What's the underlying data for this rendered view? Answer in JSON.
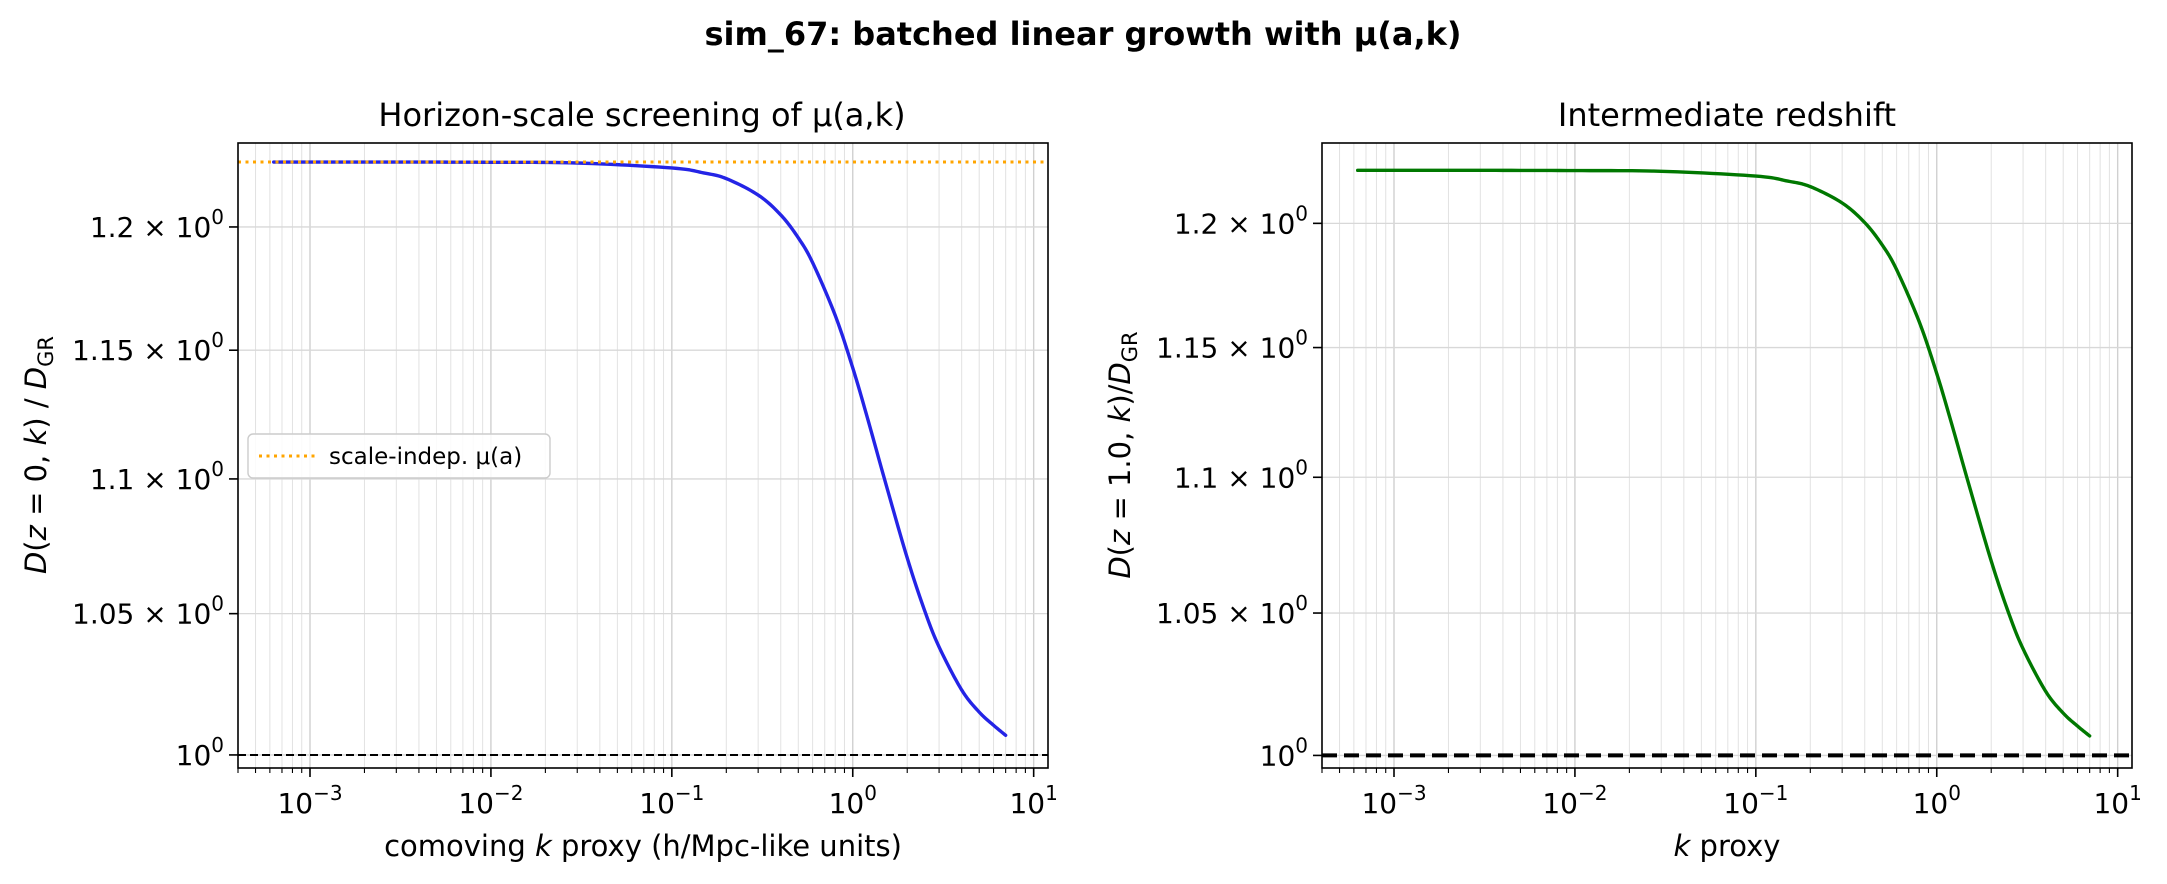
{
  "figure": {
    "suptitle": "sim_67: batched linear growth with μ(a,k)"
  },
  "chart_data": [
    {
      "type": "line",
      "title": "Horizon-scale screening of μ(a,k)",
      "xlabel_parts": [
        "comoving ",
        "k",
        " proxy (h/Mpc-like units)"
      ],
      "ylabel_parts": [
        "D",
        "(",
        "z",
        " = 0, ",
        "k",
        ") / ",
        "D",
        "GR"
      ],
      "xscale": "log",
      "yscale": "log",
      "xlim": [
        0.0004,
        12
      ],
      "ylim": [
        0.9955,
        1.2353
      ],
      "xticks": [
        0.001,
        0.01,
        0.1,
        1,
        10
      ],
      "xtick_labels": [
        {
          "base": "10",
          "exp": "−3"
        },
        {
          "base": "10",
          "exp": "−2"
        },
        {
          "base": "10",
          "exp": "−1"
        },
        {
          "base": "10",
          "exp": "0"
        },
        {
          "base": "10",
          "exp": "1"
        }
      ],
      "yticks": [
        1.0,
        1.05,
        1.1,
        1.15,
        1.2
      ],
      "ytick_labels": [
        {
          "mant": "",
          "base": "10",
          "exp": "0"
        },
        {
          "mant": "1.05 × ",
          "base": "10",
          "exp": "0"
        },
        {
          "mant": "1.1 × ",
          "base": "10",
          "exp": "0"
        },
        {
          "mant": "1.15 × ",
          "base": "10",
          "exp": "0"
        },
        {
          "mant": "1.2 × ",
          "base": "10",
          "exp": "0"
        }
      ],
      "grid": true,
      "series": [
        {
          "style": "solid",
          "color": "#2424e6",
          "x": [
            0.00063,
            0.001,
            0.003,
            0.01,
            0.03,
            0.1,
            0.15,
            0.2,
            0.3,
            0.4,
            0.5,
            0.6,
            0.8,
            1.0,
            1.2,
            1.5,
            2.0,
            2.5,
            3.0,
            4.0,
            5.0,
            6.0,
            7.0
          ],
          "y": [
            1.2272,
            1.2272,
            1.2272,
            1.2271,
            1.2268,
            1.2247,
            1.2226,
            1.2202,
            1.2133,
            1.205,
            1.1955,
            1.1853,
            1.1639,
            1.143,
            1.1239,
            1.0998,
            1.0704,
            1.051,
            1.038,
            1.0227,
            1.0149,
            1.0103,
            1.0068
          ]
        },
        {
          "name": "scale-indep. μ(a)",
          "style": "dotted",
          "color": "#ffa500",
          "y_const": 1.2272
        },
        {
          "style": "dashed",
          "color": "#000000",
          "y_const": 1.0
        }
      ],
      "legend": {
        "placement": "center-left"
      }
    },
    {
      "type": "line",
      "title": "Intermediate redshift",
      "xlabel_parts": [
        "",
        "k",
        " proxy"
      ],
      "ylabel_parts": [
        "D",
        "(",
        "z",
        " = 1.0, ",
        "k",
        ")/",
        "D",
        "GR"
      ],
      "xscale": "log",
      "yscale": "log",
      "xlim": [
        0.0004,
        12
      ],
      "ylim": [
        0.9957,
        1.2335
      ],
      "xticks": [
        0.001,
        0.01,
        0.1,
        1,
        10
      ],
      "xtick_labels": [
        {
          "base": "10",
          "exp": "−3"
        },
        {
          "base": "10",
          "exp": "−2"
        },
        {
          "base": "10",
          "exp": "−1"
        },
        {
          "base": "10",
          "exp": "0"
        },
        {
          "base": "10",
          "exp": "1"
        }
      ],
      "yticks": [
        1.0,
        1.05,
        1.1,
        1.15,
        1.2
      ],
      "ytick_labels": [
        {
          "mant": "",
          "base": "10",
          "exp": "0"
        },
        {
          "mant": "1.05 × ",
          "base": "10",
          "exp": "0"
        },
        {
          "mant": "1.1 × ",
          "base": "10",
          "exp": "0"
        },
        {
          "mant": "1.15 × ",
          "base": "10",
          "exp": "0"
        },
        {
          "mant": "1.2 × ",
          "base": "10",
          "exp": "0"
        }
      ],
      "grid": true,
      "series": [
        {
          "style": "solid",
          "color": "#007800",
          "x": [
            0.00063,
            0.001,
            0.003,
            0.01,
            0.03,
            0.1,
            0.15,
            0.2,
            0.3,
            0.4,
            0.5,
            0.6,
            0.8,
            1.0,
            1.2,
            1.5,
            2.0,
            2.5,
            3.0,
            4.0,
            5.0,
            6.0,
            7.0
          ],
          "y": [
            1.222,
            1.222,
            1.222,
            1.2219,
            1.2216,
            1.2196,
            1.2175,
            1.2152,
            1.2084,
            1.2003,
            1.1911,
            1.1811,
            1.1602,
            1.1398,
            1.1211,
            1.0976,
            1.0689,
            1.0499,
            1.0372,
            1.0222,
            1.0146,
            1.0101,
            1.0067
          ]
        },
        {
          "style": "dashed",
          "color": "#000000",
          "y_const": 1.0
        }
      ]
    }
  ]
}
